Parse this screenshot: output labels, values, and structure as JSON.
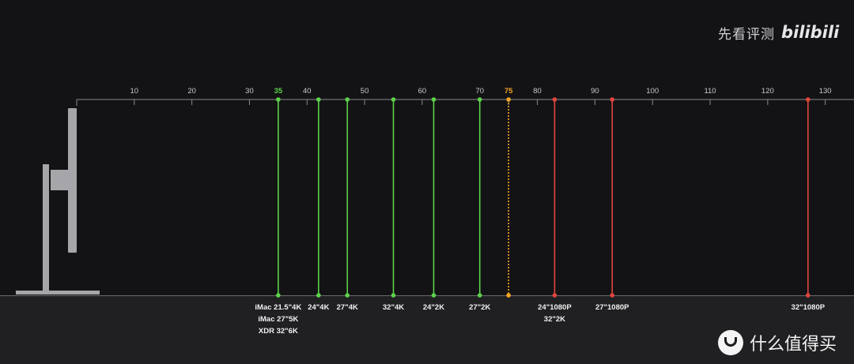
{
  "watermark": {
    "text": "先看评测",
    "logo": "bilibili"
  },
  "site_badge": {
    "text": "什么值得买",
    "icon": "smzdm-smile-icon"
  },
  "colors": {
    "background": "#131315",
    "bottom_band": "#202023",
    "axis": "#8a8a8e",
    "tick_label": "#c9c9cc",
    "green": "#5cd24a",
    "orange": "#f5a623",
    "red": "#e2453e",
    "monitor": "#a6a6aa",
    "label": "#f0f0f0"
  },
  "chart_data": {
    "type": "line",
    "xlim": [
      0,
      135
    ],
    "x_ticks": [
      {
        "value": 10,
        "label": "10"
      },
      {
        "value": 20,
        "label": "20"
      },
      {
        "value": 30,
        "label": "30"
      },
      {
        "value": 35,
        "label": "35",
        "highlight": "green"
      },
      {
        "value": 40,
        "label": "40"
      },
      {
        "value": 50,
        "label": "50"
      },
      {
        "value": 60,
        "label": "60"
      },
      {
        "value": 70,
        "label": "70"
      },
      {
        "value": 75,
        "label": "75",
        "highlight": "orange"
      },
      {
        "value": 80,
        "label": "80"
      },
      {
        "value": 90,
        "label": "90"
      },
      {
        "value": 100,
        "label": "100"
      },
      {
        "value": 110,
        "label": "110"
      },
      {
        "value": 120,
        "label": "120"
      },
      {
        "value": 130,
        "label": "130"
      }
    ],
    "markers": [
      {
        "x": 35,
        "color": "green",
        "labels": [
          "iMac 21.5\"4K",
          "iMac 27\"5K",
          "XDR 32\"6K"
        ]
      },
      {
        "x": 42,
        "color": "green",
        "labels": [
          "24\"4K"
        ]
      },
      {
        "x": 47,
        "color": "green",
        "labels": [
          "27\"4K"
        ]
      },
      {
        "x": 55,
        "color": "green",
        "labels": [
          "32\"4K"
        ]
      },
      {
        "x": 62,
        "color": "green",
        "labels": [
          "24\"2K"
        ]
      },
      {
        "x": 70,
        "color": "green",
        "labels": [
          "27\"2K"
        ]
      },
      {
        "x": 75,
        "color": "orange",
        "dashed": true,
        "labels": []
      },
      {
        "x": 83,
        "color": "red",
        "labels": [
          "24\"1080P",
          "32\"2K"
        ]
      },
      {
        "x": 93,
        "color": "red",
        "labels": [
          "27\"1080P"
        ]
      },
      {
        "x": 127,
        "color": "red",
        "labels": [
          "32\"1080P"
        ]
      }
    ]
  }
}
